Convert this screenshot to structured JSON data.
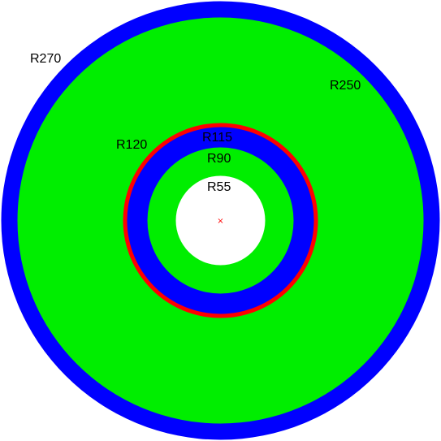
{
  "diagram": {
    "rings": [
      {
        "id": "r270",
        "radius": 270,
        "color": "#0000ff",
        "label": "R270"
      },
      {
        "id": "r250",
        "radius": 250,
        "color": "#00ee00",
        "label": "R250"
      },
      {
        "id": "r120",
        "radius": 120,
        "color": "#ff0000",
        "label": "R120"
      },
      {
        "id": "r115",
        "radius": 115,
        "color": "#0000ff",
        "label": "R115"
      },
      {
        "id": "r90",
        "radius": 90,
        "color": "#00ee00",
        "label": "R90"
      },
      {
        "id": "r55",
        "radius": 55,
        "color": "#ffffff",
        "label": "R55"
      }
    ],
    "center_marker": {
      "symbol": "×",
      "color": "#ff0000"
    }
  }
}
